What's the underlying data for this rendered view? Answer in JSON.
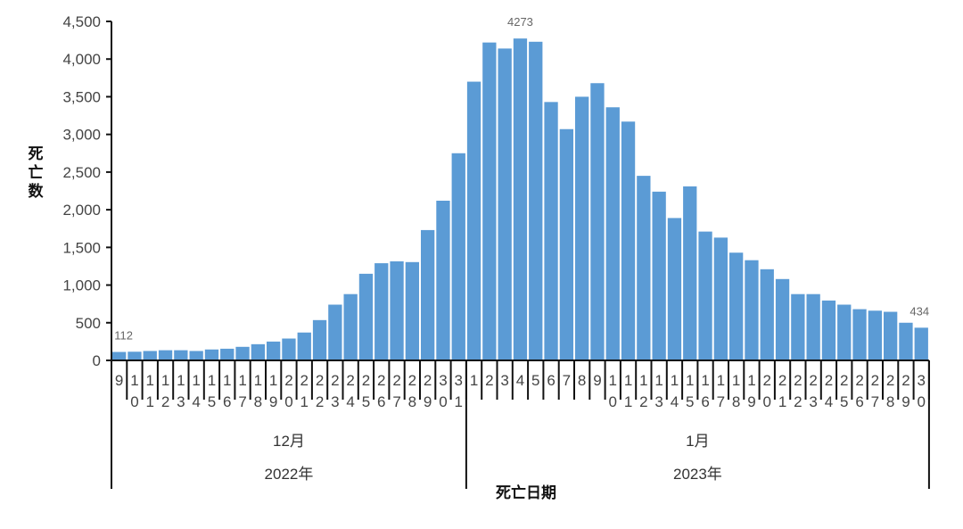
{
  "chart_data": {
    "type": "bar",
    "title": "",
    "xlabel": "死亡日期",
    "ylabel": "死亡数",
    "ylim": [
      0,
      4500
    ],
    "yticks": [
      0,
      500,
      1000,
      1500,
      2000,
      2500,
      3000,
      3500,
      4000,
      4500
    ],
    "ytick_labels": [
      "0",
      "500",
      "1,000",
      "1,500",
      "2,000",
      "2,500",
      "3,000",
      "3,500",
      "4,000",
      "4,500"
    ],
    "grid": false,
    "legend": null,
    "bar_color": "#5b9bd5",
    "categories": [
      "9",
      "10",
      "11",
      "12",
      "13",
      "14",
      "15",
      "16",
      "17",
      "18",
      "19",
      "20",
      "21",
      "22",
      "23",
      "24",
      "25",
      "26",
      "27",
      "28",
      "29",
      "30",
      "31",
      "1",
      "2",
      "3",
      "4",
      "5",
      "6",
      "7",
      "8",
      "9",
      "10",
      "11",
      "12",
      "13",
      "14",
      "15",
      "16",
      "17",
      "18",
      "19",
      "20",
      "21",
      "22",
      "23",
      "24",
      "25",
      "26",
      "27",
      "28",
      "29",
      "30"
    ],
    "values": [
      112,
      115,
      125,
      135,
      135,
      125,
      145,
      155,
      180,
      215,
      250,
      290,
      370,
      535,
      740,
      880,
      1150,
      1290,
      1315,
      1305,
      1730,
      2120,
      2750,
      3700,
      4220,
      4140,
      4273,
      4230,
      3430,
      3070,
      3500,
      3680,
      3360,
      3170,
      2450,
      2240,
      1890,
      2310,
      1710,
      1630,
      1430,
      1330,
      1210,
      1080,
      880,
      880,
      795,
      740,
      680,
      660,
      645,
      500,
      434
    ],
    "annotations": [
      {
        "category_index": 0,
        "text": "112"
      },
      {
        "category_index": 26,
        "text": "4273"
      },
      {
        "category_index": 52,
        "text": "434"
      }
    ],
    "groups": [
      {
        "month": "12月",
        "year": "2022年",
        "start": 0,
        "end": 22
      },
      {
        "month": "1月",
        "year": "2023年",
        "start": 23,
        "end": 52
      }
    ]
  }
}
